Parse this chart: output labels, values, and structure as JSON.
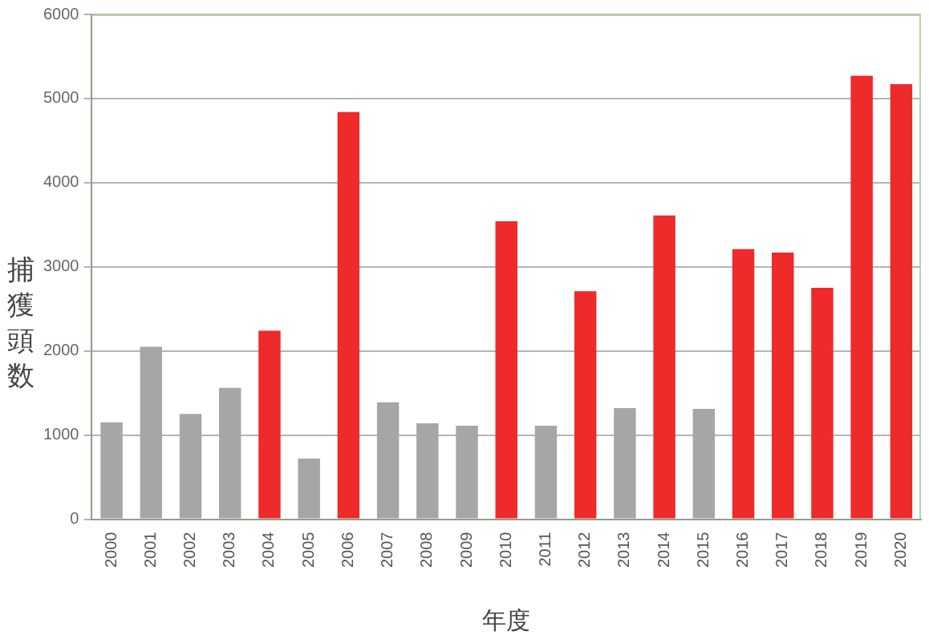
{
  "chart_data": {
    "type": "bar",
    "xlabel": "年度",
    "ylabel": "捕獲頭数",
    "categories": [
      "2000",
      "2001",
      "2002",
      "2003",
      "2004",
      "2005",
      "2006",
      "2007",
      "2008",
      "2009",
      "2010",
      "2011",
      "2012",
      "2013",
      "2014",
      "2015",
      "2016",
      "2017",
      "2018",
      "2019",
      "2020"
    ],
    "values": [
      1150,
      2050,
      1250,
      1560,
      2240,
      720,
      4840,
      1390,
      1140,
      1110,
      3540,
      1110,
      2710,
      1320,
      3610,
      1310,
      3210,
      3170,
      2750,
      5270,
      5170
    ],
    "colors": [
      "#a6a6a9",
      "#a6a6a9",
      "#a6a6a9",
      "#a6a6a9",
      "#ee2a2a",
      "#a6a6a9",
      "#ee2a2a",
      "#a6a6a9",
      "#a6a6a9",
      "#a6a6a9",
      "#ee2a2a",
      "#a6a6a9",
      "#ee2a2a",
      "#a6a6a9",
      "#ee2a2a",
      "#a6a6a9",
      "#ee2a2a",
      "#ee2a2a",
      "#ee2a2a",
      "#ee2a2a",
      "#ee2a2a"
    ],
    "ylim": [
      0,
      6000
    ],
    "yticks": [
      0,
      1000,
      2000,
      3000,
      4000,
      5000,
      6000
    ],
    "grid": "y",
    "legend": false
  }
}
